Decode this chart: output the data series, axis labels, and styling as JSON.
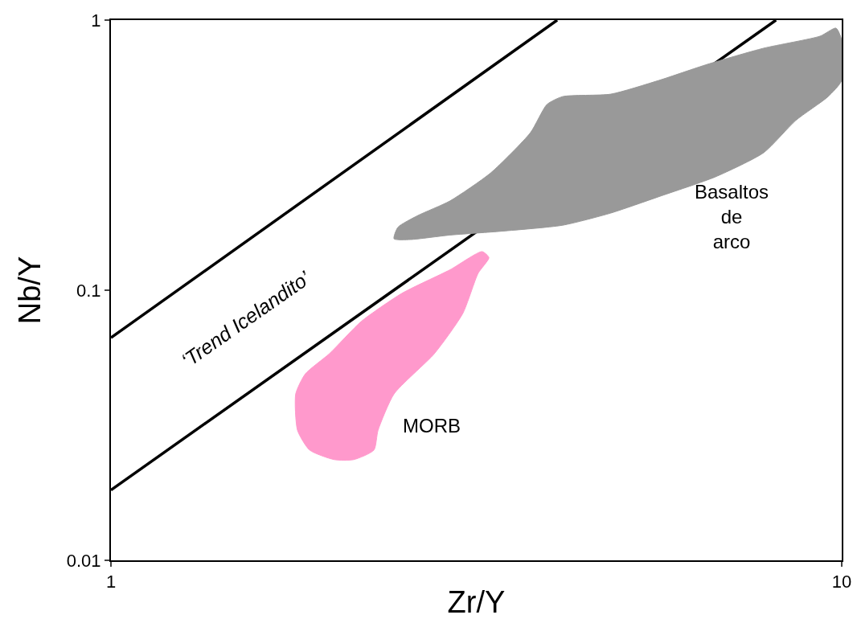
{
  "chart_data": {
    "type": "line",
    "xlabel": "Zr/Y",
    "ylabel": "Nb/Y",
    "log": "xy",
    "xlim": [
      1,
      10
    ],
    "ylim": [
      0.01,
      1
    ],
    "xticks": [
      1,
      10
    ],
    "yticks": [
      0.01,
      0.1,
      1
    ],
    "grid": false,
    "marker": "none",
    "line_style": "solid",
    "series": [
      {
        "color": "#000000",
        "x": [
          1,
          4.08
        ],
        "values": [
          0.0667,
          1
        ]
      },
      {
        "color": "#000000",
        "x": [
          1,
          8.13
        ],
        "values": [
          0.0182,
          1
        ]
      },
      {
        "type": "area",
        "color": "#999999",
        "x": [
          2.44,
          2.47,
          2.63,
          2.91,
          3.31,
          3.75,
          3.95,
          4.15,
          4.83,
          5.62,
          6.55,
          7.82,
          9.34,
          9.82,
          10,
          10,
          9.58,
          8.65,
          7.82,
          6.72,
          5.62,
          4.83,
          4.15,
          3.39,
          2.91,
          2.57,
          2.44
        ],
        "values": [
          0.155,
          0.171,
          0.189,
          0.214,
          0.272,
          0.383,
          0.487,
          0.521,
          0.532,
          0.598,
          0.686,
          0.787,
          0.872,
          0.934,
          0.843,
          0.598,
          0.521,
          0.425,
          0.323,
          0.263,
          0.222,
          0.193,
          0.174,
          0.165,
          0.16,
          0.154,
          0.155
        ]
      },
      {
        "type": "area",
        "color": "#ff99cc",
        "x": [
          3.22,
          3.29,
          3.18,
          3.03,
          2.77,
          2.44,
          2.32,
          2.29,
          2.15,
          2.02,
          1.87,
          1.8,
          1.79,
          1.845,
          1.99,
          2.2,
          2.5,
          2.91,
          3.22
        ],
        "values": [
          0.139,
          0.132,
          0.1155,
          0.082,
          0.0582,
          0.0413,
          0.0303,
          0.0256,
          0.0236,
          0.0236,
          0.0256,
          0.0303,
          0.0413,
          0.049,
          0.0582,
          0.0766,
          0.0973,
          0.119,
          0.139
        ]
      }
    ],
    "annotations": [
      "‘Trend Icelandito’",
      "MORB",
      "Basaltos\nde\narco"
    ]
  }
}
